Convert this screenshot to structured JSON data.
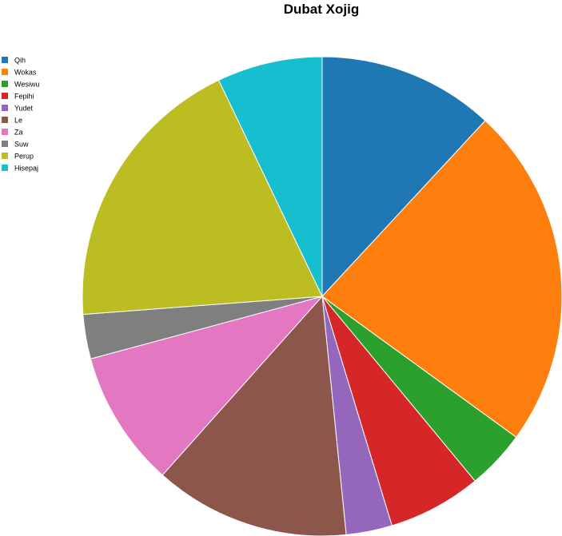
{
  "chart_data": {
    "type": "pie",
    "title": "Dubat Xojig",
    "legend_position": "top-left",
    "start_angle_deg": 90,
    "direction": "clockwise",
    "slices": [
      {
        "label": "Qih",
        "value": 11.9,
        "color": "#1f77b4"
      },
      {
        "label": "Wokas",
        "value": 23.1,
        "color": "#ff7f0e"
      },
      {
        "label": "Wesiwu",
        "value": 4.0,
        "color": "#2ca02c"
      },
      {
        "label": "Fepihi",
        "value": 6.3,
        "color": "#d62728"
      },
      {
        "label": "Yudet",
        "value": 3.1,
        "color": "#9467bd"
      },
      {
        "label": "Le",
        "value": 13.2,
        "color": "#8c564b"
      },
      {
        "label": "Za",
        "value": 9.2,
        "color": "#e377c2"
      },
      {
        "label": "Suw",
        "value": 3.0,
        "color": "#7f7f7f"
      },
      {
        "label": "Perup",
        "value": 19.1,
        "color": "#bcbd22"
      },
      {
        "label": "Hisepaj",
        "value": 7.1,
        "color": "#17becf"
      }
    ]
  }
}
